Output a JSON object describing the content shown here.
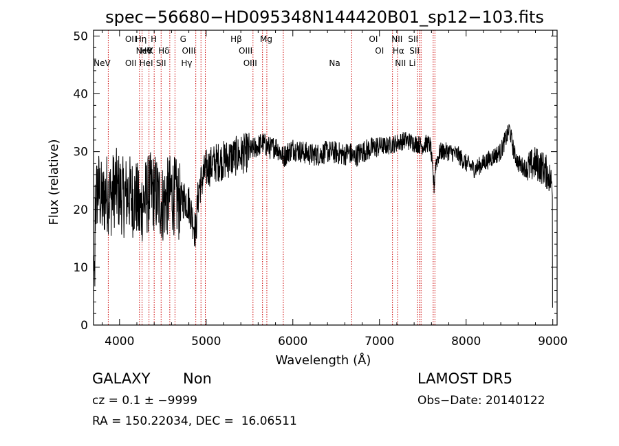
{
  "chart_data": {
    "type": "line",
    "title": "spec−56680−HD095348N144420B01_sp12−103.fits",
    "xlabel": "Wavelength (Å)",
    "ylabel": "Flux (relative)",
    "xlim": [
      3700,
      9050
    ],
    "ylim": [
      0,
      51
    ],
    "x_ticks": [
      4000,
      5000,
      6000,
      7000,
      8000,
      9000
    ],
    "y_ticks": [
      0,
      10,
      20,
      30,
      40,
      50
    ],
    "grid": false,
    "line_color": "#000000",
    "marker_color": "#cc0000",
    "series": [
      {
        "x": [
          3700,
          3750,
          3800,
          3850,
          3900,
          3950,
          4000,
          4050,
          4100,
          4150,
          4200,
          4230,
          4260,
          4300,
          4350,
          4400,
          4450,
          4500,
          4550,
          4600,
          4650,
          4700,
          4750,
          4800,
          4850,
          4880,
          4900,
          4920,
          4950,
          5000,
          5100,
          5200,
          5300,
          5400,
          5500,
          5550,
          5600,
          5650,
          5700,
          5750,
          5800,
          5850,
          5890,
          5950,
          6000,
          6100,
          6200,
          6300,
          6400,
          6500,
          6600,
          6650,
          6700,
          6750,
          6800,
          6900,
          7000,
          7100,
          7200,
          7300,
          7400,
          7500,
          7550,
          7590,
          7610,
          7630,
          7650,
          7700,
          7800,
          7900,
          8000,
          8100,
          8200,
          8300,
          8400,
          8450,
          8480,
          8500,
          8550,
          8600,
          8700,
          8800,
          8900,
          8950,
          9000
        ],
        "y": [
          18,
          24,
          21,
          23,
          22,
          24,
          23,
          22,
          23,
          22,
          22,
          19,
          21,
          22,
          23,
          23,
          22,
          21,
          22,
          23,
          22,
          21,
          22,
          21,
          18,
          16,
          21,
          24,
          25,
          27,
          28,
          28.5,
          29,
          29.5,
          30,
          30.5,
          31,
          31.5,
          31,
          30.5,
          31,
          30,
          29,
          30,
          30.5,
          30,
          29.5,
          29.5,
          30,
          29.8,
          29.5,
          30,
          29,
          29.5,
          30,
          30.5,
          31,
          31,
          31.5,
          32,
          31.5,
          31,
          31.5,
          31,
          27,
          24,
          28,
          30,
          30,
          29.5,
          28,
          27,
          28,
          29,
          30,
          32,
          33,
          34,
          30,
          28,
          27,
          28,
          27,
          26,
          24
        ]
      }
    ],
    "line_markers": [
      {
        "label": "NeV",
        "wl": 3426,
        "row": 2
      },
      {
        "label": "NeV",
        "wl": 3870,
        "row": 1
      },
      {
        "label": "OII",
        "wl": 3727,
        "row": 0
      },
      {
        "label": "Hη",
        "wl": 3835,
        "row": 0
      },
      {
        "label": "H",
        "wl": 3969,
        "row": 0
      },
      {
        "label": "Hθ",
        "wl": 3889,
        "row": 1
      },
      {
        "label": "K",
        "wl": 3934,
        "row": 1
      },
      {
        "label": "OII",
        "wl": 3727,
        "row": 2
      },
      {
        "label": "HeI",
        "wl": 3889,
        "row": 2
      },
      {
        "label": "Hδ",
        "wl": 4102,
        "row": 1
      },
      {
        "label": "SII",
        "wl": 4072,
        "row": 2
      },
      {
        "label": "G",
        "wl": 4304,
        "row": 0
      },
      {
        "label": "OIII",
        "wl": 4363,
        "row": 1
      },
      {
        "label": "Hγ",
        "wl": 4341,
        "row": 2
      },
      {
        "label": "Hβ",
        "wl": 4861,
        "row": 0
      },
      {
        "label": "OIII",
        "wl": 4959,
        "row": 1
      },
      {
        "label": "OIII",
        "wl": 5007,
        "row": 2
      },
      {
        "label": "Mg",
        "wl": 5175,
        "row": 0
      },
      {
        "label": "Na",
        "wl": 5893,
        "row": 2
      },
      {
        "label": "OI",
        "wl": 6300,
        "row": 0
      },
      {
        "label": "OI",
        "wl": 6364,
        "row": 1
      },
      {
        "label": "NII",
        "wl": 6548,
        "row": 0
      },
      {
        "label": "Hα",
        "wl": 6563,
        "row": 1
      },
      {
        "label": "NII",
        "wl": 6584,
        "row": 2
      },
      {
        "label": "SII",
        "wl": 6717,
        "row": 0
      },
      {
        "label": "SII",
        "wl": 6731,
        "row": 1
      },
      {
        "label": "Li",
        "wl": 6708,
        "row": 2
      }
    ],
    "marker_lines_observed": [
      3870,
      4230,
      4260,
      4340,
      4400,
      4480,
      4580,
      4640,
      4880,
      4940,
      4990,
      5540,
      5650,
      5700,
      5890,
      6680,
      7150,
      7210,
      7440,
      7460,
      7480,
      7620,
      7640
    ]
  },
  "info": {
    "object_class": "GALAXY",
    "subclass": "Non",
    "survey": "LAMOST DR5",
    "cz_line": "cz = 0.1 ± −9999",
    "obs_date": "Obs−Date: 20140122",
    "coords": "RA = 150.22034, DEC =  16.06511"
  }
}
